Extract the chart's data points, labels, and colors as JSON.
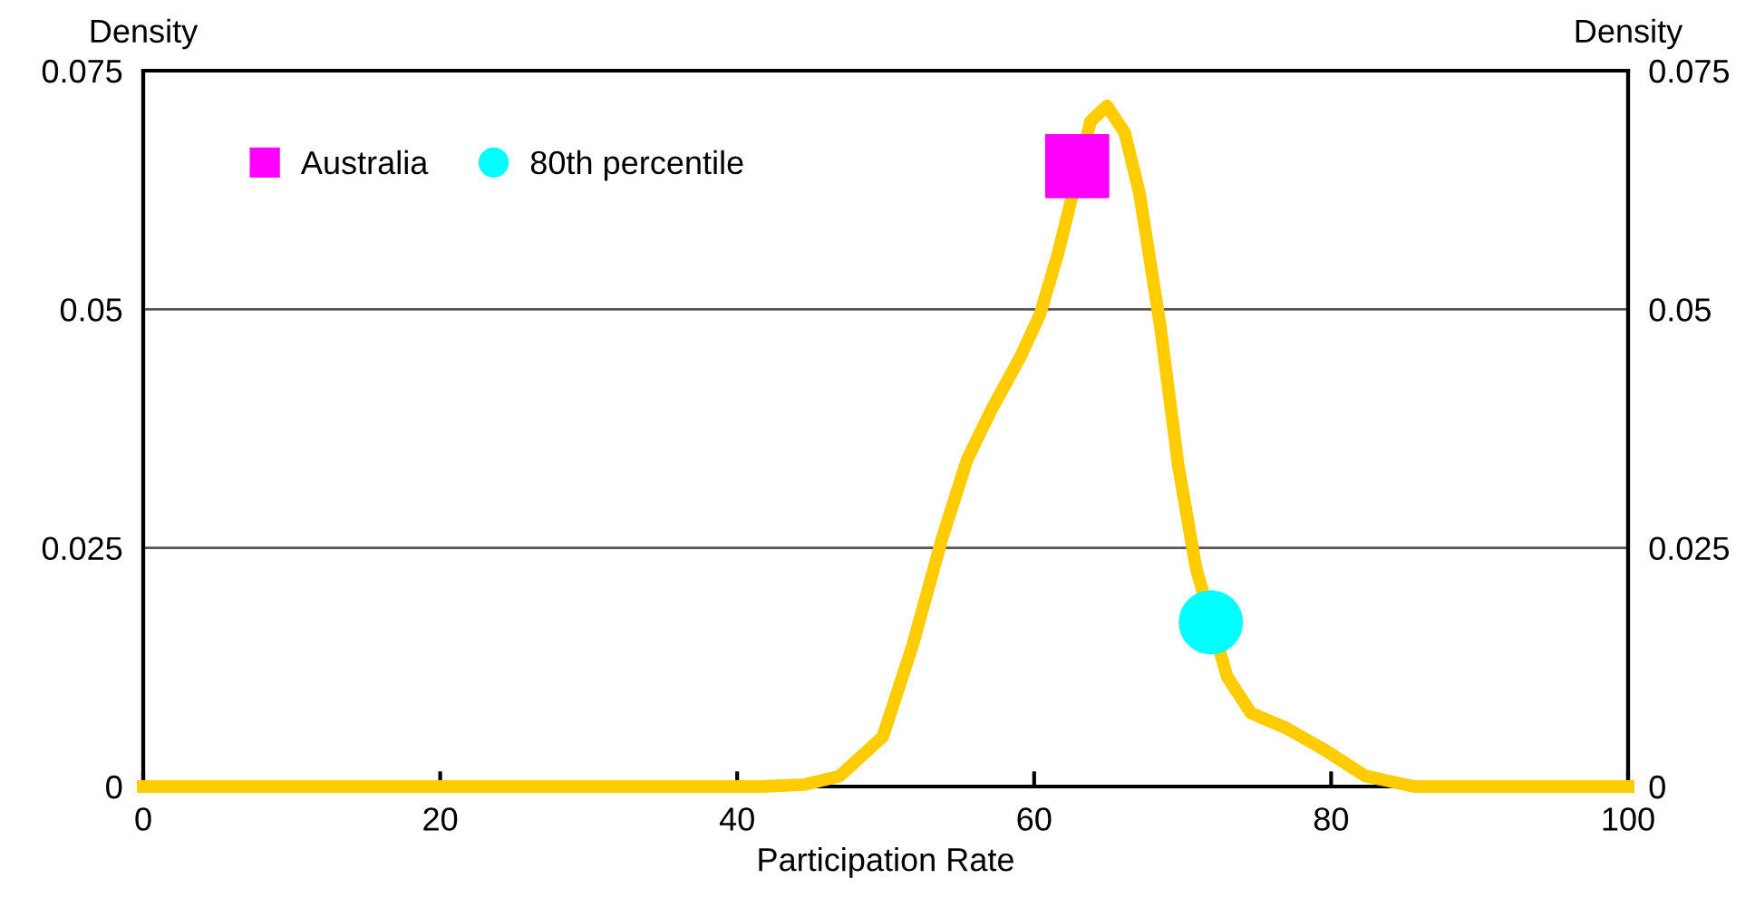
{
  "chart_data": {
    "type": "line",
    "xlabel": "Participation Rate",
    "ylabel": "Density",
    "y2label": "Density",
    "xlim": [
      0,
      100
    ],
    "xticks": [
      0,
      20,
      40,
      60,
      80,
      100
    ],
    "ylim": [
      0,
      0.075
    ],
    "yticks": [
      0,
      0.025,
      0.05,
      0.075
    ],
    "y2lim": [
      0,
      0.075
    ],
    "y2ticks": [
      0,
      0.025,
      0.05,
      0.075
    ],
    "grid": "y",
    "legend": "top left",
    "series": [
      {
        "color": "#ffcc00",
        "marker": "none",
        "x": [
          0,
          10,
          20,
          30,
          41.6,
          44.5,
          46.9,
          49.8,
          51.8,
          53.8,
          55.5,
          57.1,
          59.1,
          60.4,
          61.6,
          63.8,
          64.9,
          66.1,
          67.1,
          68.5,
          69.7,
          70.9,
          73.0,
          74.6,
          77.0,
          79.5,
          82.3,
          85.6,
          90,
          100
        ],
        "values": [
          0,
          0,
          0,
          0,
          0,
          0.0002,
          0.0011,
          0.0052,
          0.0147,
          0.026,
          0.0343,
          0.0394,
          0.0451,
          0.0495,
          0.0558,
          0.0697,
          0.0713,
          0.0685,
          0.0621,
          0.0482,
          0.0337,
          0.0229,
          0.0115,
          0.0077,
          0.0061,
          0.0039,
          0.0011,
          0,
          0,
          0
        ]
      },
      {
        "type": "scatter",
        "name": "Australia",
        "color": "#ff00ff",
        "marker": "square",
        "x": [
          62.9
        ],
        "values": [
          0.065
        ]
      },
      {
        "type": "scatter",
        "name": "80th percentile",
        "color": "#00ffff",
        "marker": "circle",
        "x": [
          71.9
        ],
        "values": [
          0.0172
        ]
      }
    ]
  }
}
